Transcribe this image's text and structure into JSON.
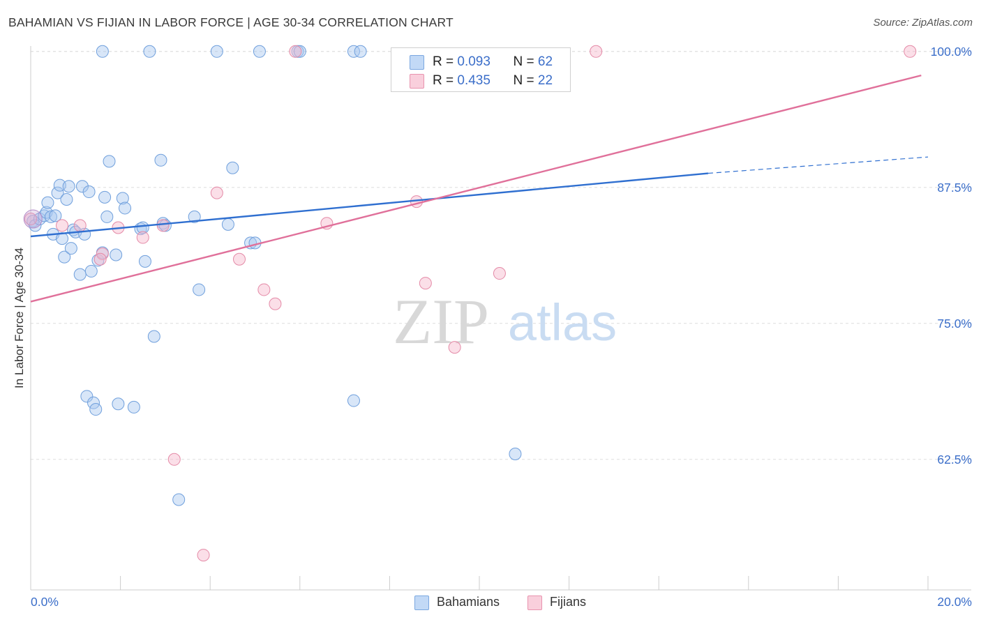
{
  "title": "BAHAMIAN VS FIJIAN IN LABOR FORCE | AGE 30-34 CORRELATION CHART",
  "source": "Source: ZipAtlas.com",
  "watermark": {
    "zip": "ZIP",
    "atlas": "atlas"
  },
  "legend": {
    "rows": [
      {
        "r_label": "R =",
        "r_value": "0.093",
        "n_label": "N =",
        "n_value": "62",
        "color": "#a8c8f0"
      },
      {
        "r_label": "R =",
        "r_value": "0.435",
        "n_label": "N =",
        "n_value": "22",
        "color": "#f6b8cb"
      }
    ]
  },
  "bottom_legend": [
    {
      "label": "Bahamians",
      "color": "#a8c8f0"
    },
    {
      "label": "Fijians",
      "color": "#f6b8cb"
    }
  ],
  "chart_data": {
    "type": "scatter",
    "title": "BAHAMIAN VS FIJIAN IN LABOR FORCE | AGE 30-34 CORRELATION CHART",
    "xlabel": "",
    "ylabel": "In Labor Force | Age 30-34",
    "xlim": [
      0,
      20
    ],
    "ylim": [
      50.5,
      100.5
    ],
    "x_tick_labels": [
      "0.0%",
      "20.0%"
    ],
    "y_ticks": [
      62.5,
      75.0,
      87.5,
      100.0
    ],
    "y_tick_labels": [
      "62.5%",
      "75.0%",
      "87.5%",
      "100.0%"
    ],
    "grid": true,
    "series": [
      {
        "name": "Bahamians",
        "color": "#a8c8f0",
        "stroke": "#6f9fdc",
        "trend": {
          "x1": 0,
          "y1": 83.0,
          "x2": 15.1,
          "y2": 88.8,
          "dash_to_x": 20,
          "dash_to_y": 90.3,
          "color": "#2f6fd0"
        },
        "points": [
          [
            0.05,
            84.4
          ],
          [
            0.1,
            84.0
          ],
          [
            0.2,
            84.6
          ],
          [
            0.3,
            84.9
          ],
          [
            0.35,
            85.2
          ],
          [
            0.38,
            86.1
          ],
          [
            0.45,
            84.8
          ],
          [
            0.5,
            83.2
          ],
          [
            0.55,
            84.9
          ],
          [
            0.6,
            87.0
          ],
          [
            0.65,
            87.7
          ],
          [
            0.7,
            82.8
          ],
          [
            0.75,
            81.1
          ],
          [
            0.8,
            86.4
          ],
          [
            0.85,
            87.6
          ],
          [
            0.9,
            81.9
          ],
          [
            0.95,
            83.6
          ],
          [
            1.0,
            83.4
          ],
          [
            1.1,
            79.5
          ],
          [
            1.15,
            87.6
          ],
          [
            1.2,
            83.2
          ],
          [
            1.25,
            68.3
          ],
          [
            1.3,
            87.1
          ],
          [
            1.35,
            79.8
          ],
          [
            1.4,
            67.7
          ],
          [
            1.45,
            67.1
          ],
          [
            1.5,
            80.8
          ],
          [
            1.6,
            81.5
          ],
          [
            1.65,
            86.6
          ],
          [
            1.7,
            84.8
          ],
          [
            1.75,
            89.9
          ],
          [
            1.9,
            81.3
          ],
          [
            1.95,
            67.6
          ],
          [
            2.05,
            86.5
          ],
          [
            2.1,
            85.6
          ],
          [
            2.3,
            67.3
          ],
          [
            2.45,
            83.7
          ],
          [
            2.5,
            83.8
          ],
          [
            2.55,
            80.7
          ],
          [
            2.75,
            73.8
          ],
          [
            2.9,
            90.0
          ],
          [
            2.95,
            84.2
          ],
          [
            3.0,
            84.0
          ],
          [
            3.3,
            58.8
          ],
          [
            3.65,
            84.8
          ],
          [
            3.75,
            78.1
          ],
          [
            4.4,
            84.1
          ],
          [
            4.5,
            89.3
          ],
          [
            4.9,
            82.4
          ],
          [
            5.0,
            82.4
          ],
          [
            7.2,
            67.9
          ],
          [
            10.8,
            63.0
          ],
          [
            1.6,
            100.0
          ],
          [
            2.65,
            100.0
          ],
          [
            4.15,
            100.0
          ],
          [
            5.1,
            100.0
          ],
          [
            5.95,
            100.0
          ],
          [
            6.0,
            100.0
          ],
          [
            7.2,
            100.0
          ],
          [
            7.35,
            100.0
          ]
        ]
      },
      {
        "name": "Fijians",
        "color": "#f6b8cb",
        "stroke": "#e48aa7",
        "trend": {
          "x1": 0,
          "y1": 77.0,
          "x2": 19.85,
          "y2": 97.8,
          "color": "#e0709a"
        },
        "points": [
          [
            0.0,
            84.6
          ],
          [
            0.7,
            84.0
          ],
          [
            1.1,
            84.0
          ],
          [
            1.6,
            81.4
          ],
          [
            1.55,
            80.9
          ],
          [
            1.95,
            83.8
          ],
          [
            2.5,
            82.9
          ],
          [
            2.95,
            84.0
          ],
          [
            3.2,
            62.5
          ],
          [
            3.85,
            53.7
          ],
          [
            4.15,
            87.0
          ],
          [
            4.65,
            80.9
          ],
          [
            5.2,
            78.1
          ],
          [
            5.45,
            76.8
          ],
          [
            6.6,
            84.2
          ],
          [
            5.9,
            100.0
          ],
          [
            8.6,
            86.2
          ],
          [
            8.8,
            78.7
          ],
          [
            9.45,
            72.8
          ],
          [
            10.45,
            79.6
          ],
          [
            12.6,
            100.0
          ],
          [
            19.6,
            100.0
          ]
        ]
      }
    ]
  }
}
